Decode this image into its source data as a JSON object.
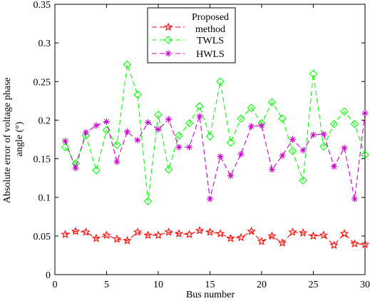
{
  "chart_data": {
    "type": "line",
    "xlabel": "Bus number",
    "ylabel": "Absolute error of voltage phase angle (°)",
    "ylabel_lines": [
      "Absolute error of voltage phase",
      "angle (°)"
    ],
    "xlim": [
      0,
      30
    ],
    "ylim": [
      0,
      0.35
    ],
    "xticks": [
      0,
      5,
      10,
      15,
      20,
      25,
      30
    ],
    "yticks": [
      0,
      0.05,
      0.1,
      0.15,
      0.2,
      0.25,
      0.3,
      0.35
    ],
    "ytick_labels": [
      "0",
      "0.05",
      "0.1",
      "0.15",
      "0.2",
      "0.25",
      "0.3",
      "0.35"
    ],
    "grid": false,
    "legend": {
      "placement": "top-center",
      "entries": [
        "Proposed method",
        "TWLS",
        "HWLS"
      ]
    },
    "x": [
      1,
      2,
      3,
      4,
      5,
      6,
      7,
      8,
      9,
      10,
      11,
      12,
      13,
      14,
      15,
      16,
      17,
      18,
      19,
      20,
      21,
      22,
      23,
      24,
      25,
      26,
      27,
      28,
      29,
      30
    ],
    "series": [
      {
        "name": "Proposed method",
        "label_lines": [
          "Proposed",
          "method"
        ],
        "color": "#ff0000",
        "marker": "star",
        "values": [
          0.052,
          0.056,
          0.055,
          0.047,
          0.051,
          0.046,
          0.044,
          0.055,
          0.051,
          0.051,
          0.055,
          0.053,
          0.052,
          0.057,
          0.055,
          0.053,
          0.047,
          0.048,
          0.056,
          0.043,
          0.05,
          0.041,
          0.055,
          0.054,
          0.05,
          0.051,
          0.038,
          0.053,
          0.04,
          0.039
        ]
      },
      {
        "name": "TWLS",
        "label_lines": [
          "TWLS"
        ],
        "color": "#00ff00",
        "marker": "diamond",
        "values": [
          0.165,
          0.144,
          0.18,
          0.135,
          0.187,
          0.168,
          0.272,
          0.233,
          0.095,
          0.207,
          0.136,
          0.18,
          0.196,
          0.218,
          0.179,
          0.25,
          0.171,
          0.202,
          0.216,
          0.196,
          0.223,
          0.202,
          0.16,
          0.122,
          0.26,
          0.166,
          0.195,
          0.211,
          0.195,
          0.155
        ]
      },
      {
        "name": "HWLS",
        "label_lines": [
          "HWLS"
        ],
        "color": "#cc00cc",
        "marker": "asterisk",
        "values": [
          0.173,
          0.138,
          0.184,
          0.193,
          0.198,
          0.146,
          0.185,
          0.174,
          0.197,
          0.188,
          0.201,
          0.165,
          0.165,
          0.205,
          0.098,
          0.153,
          0.128,
          0.156,
          0.192,
          0.193,
          0.136,
          0.154,
          0.175,
          0.161,
          0.181,
          0.182,
          0.14,
          0.164,
          0.098,
          0.209
        ]
      }
    ]
  }
}
